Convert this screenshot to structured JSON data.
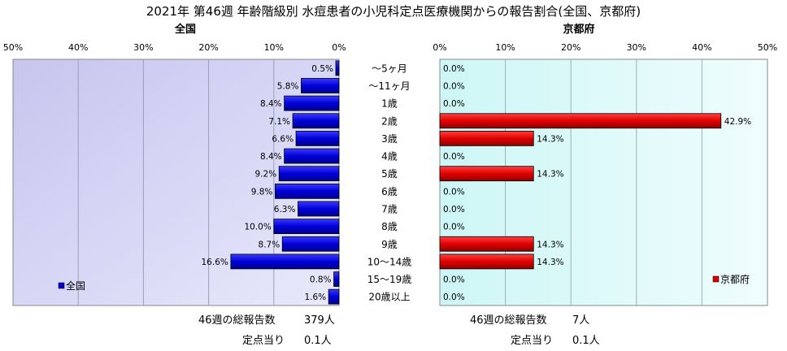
{
  "title": "2021年 第46週 年齢階級別 水痘患者の小児科定点医療機関からの報告割合(全国、京都府)",
  "age_groups": [
    "～5ヶ月",
    "～11ヶ月",
    "1歳",
    "2歳",
    "3歳",
    "4歳",
    "5歳",
    "6歳",
    "7歳",
    "8歳",
    "9歳",
    "10～14歳",
    "15～19歳",
    "20歳以上"
  ],
  "chart_data": [
    {
      "type": "bar",
      "orientation": "horizontal",
      "direction": "right-to-left",
      "title": "全国",
      "series": [
        {
          "name": "全国",
          "values": [
            0.5,
            5.8,
            8.4,
            7.1,
            6.6,
            8.4,
            9.2,
            9.8,
            6.3,
            10.0,
            8.7,
            16.6,
            0.8,
            1.6
          ]
        }
      ],
      "tick_labels": [
        "50%",
        "40%",
        "30%",
        "20%",
        "10%",
        "0%"
      ],
      "xlim": [
        0,
        50
      ],
      "grid": true,
      "legend_position": "bottom-left",
      "color": "#0000cc"
    },
    {
      "type": "bar",
      "orientation": "horizontal",
      "title": "京都府",
      "series": [
        {
          "name": "京都府",
          "values": [
            0.0,
            0.0,
            0.0,
            42.9,
            14.3,
            0.0,
            14.3,
            0.0,
            0.0,
            0.0,
            14.3,
            14.3,
            0.0,
            0.0
          ]
        }
      ],
      "tick_labels": [
        "0%",
        "10%",
        "20%",
        "30%",
        "40%",
        "50%"
      ],
      "xlim": [
        0,
        50
      ],
      "grid": true,
      "legend_position": "bottom-right",
      "color": "#dd0000"
    }
  ],
  "footer": {
    "national": {
      "total_label": "46週の総報告数",
      "total_value": "379人",
      "per_label": "定点当り",
      "per_value": "0.1人"
    },
    "kyoto": {
      "total_label": "46週の総報告数",
      "total_value": "7人",
      "per_label": "定点当り",
      "per_value": "0.1人"
    }
  }
}
